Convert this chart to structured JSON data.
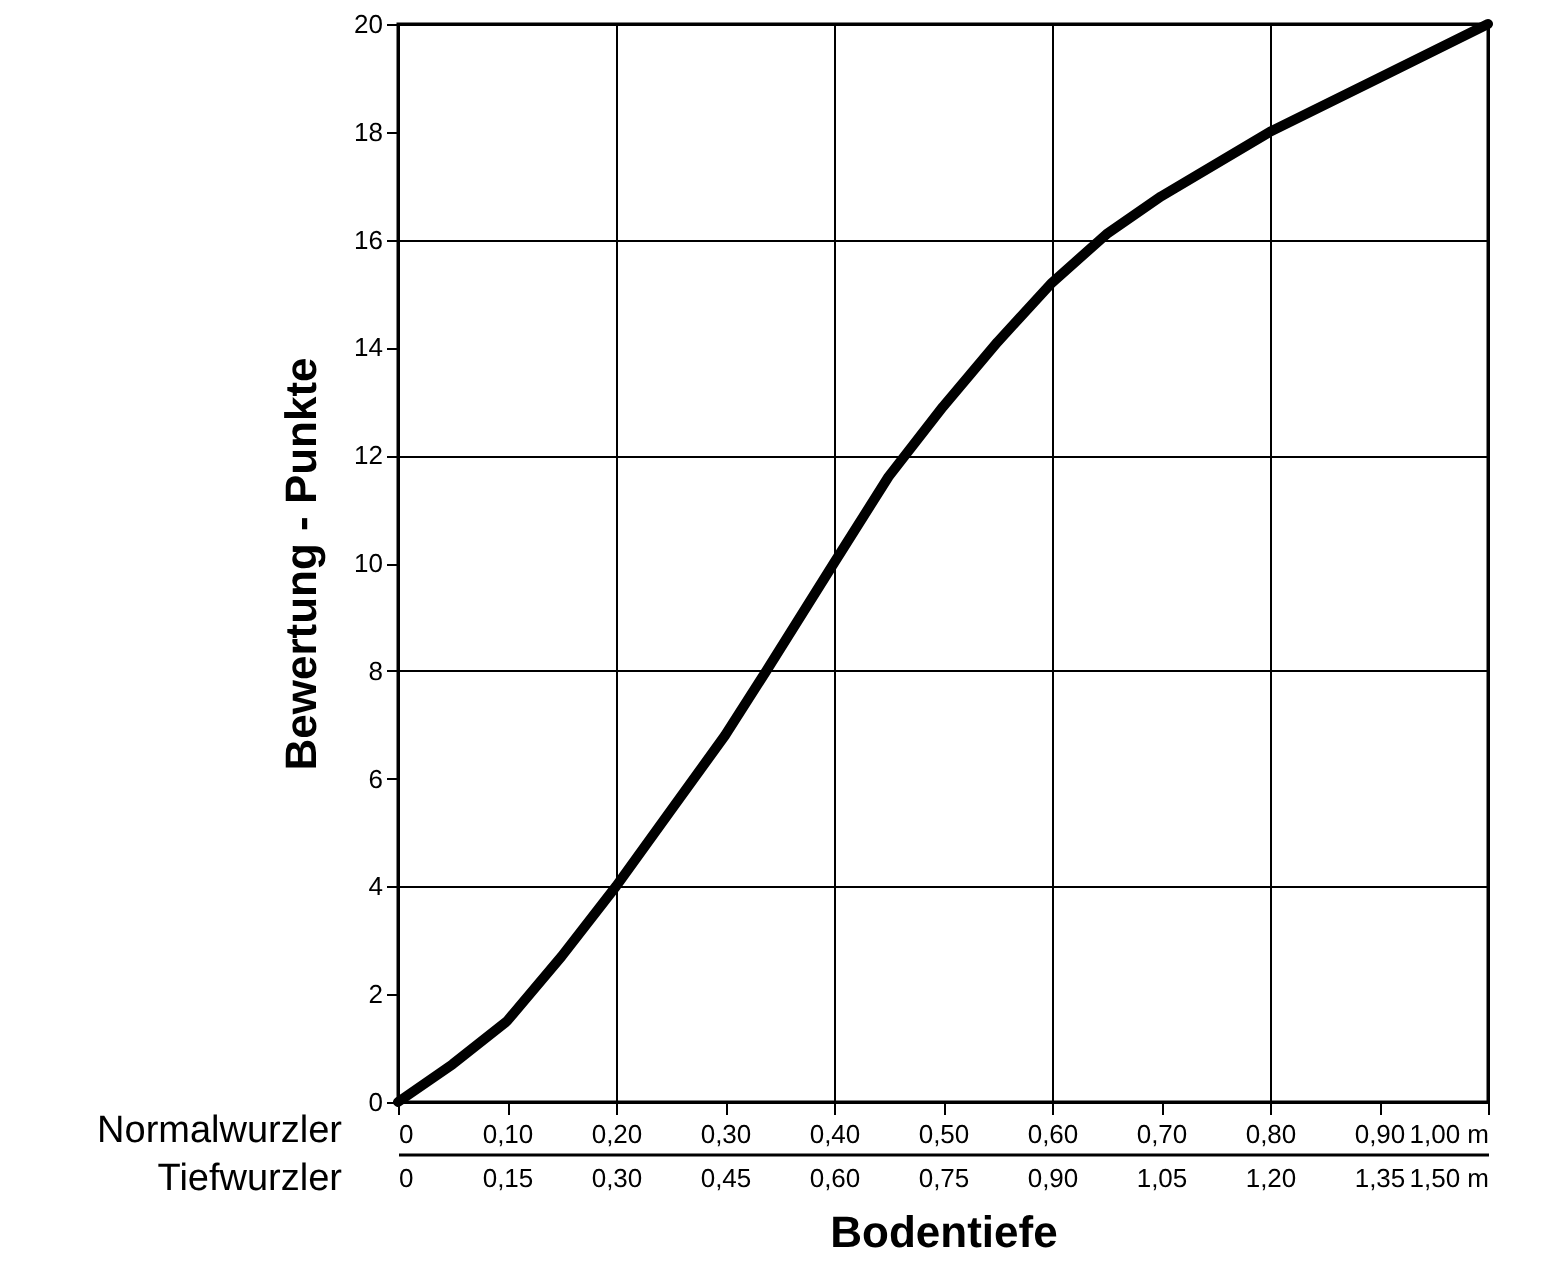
{
  "chart_data": {
    "type": "line",
    "xlabel": "Bodentiefe",
    "ylabel": "Bewertung - Punkte",
    "annotations": [
      "Normalwurzler",
      "Tiefwurzler"
    ],
    "x": [
      0,
      0.05,
      0.1,
      0.15,
      0.2,
      0.25,
      0.3,
      0.338,
      0.4,
      0.45,
      0.5,
      0.55,
      0.6,
      0.65,
      0.7,
      0.8,
      0.9,
      1.0
    ],
    "series": [
      {
        "color": "#000000",
        "values": [
          0,
          0.7,
          1.5,
          2.7,
          4.0,
          5.4,
          6.8,
          8.0,
          10.0,
          11.6,
          12.9,
          14.1,
          15.2,
          16.1,
          16.8,
          18.0,
          19.0,
          20.0
        ]
      }
    ],
    "xlim": [
      0,
      1.0
    ],
    "xticks": [
      {
        "value": 0,
        "label": "0"
      },
      {
        "value": 0.1,
        "label": "0,10"
      },
      {
        "value": 0.2,
        "label": "0,20"
      },
      {
        "value": 0.3,
        "label": "0,30"
      },
      {
        "value": 0.4,
        "label": "0,40"
      },
      {
        "value": 0.5,
        "label": "0,50"
      },
      {
        "value": 0.6,
        "label": "0,60"
      },
      {
        "value": 0.7,
        "label": "0,70"
      },
      {
        "value": 0.8,
        "label": "0,80"
      },
      {
        "value": 0.9,
        "label": "0,90"
      },
      {
        "value": 1.0,
        "label": "1,00 m"
      }
    ],
    "x2lim": [
      0,
      1.5
    ],
    "x2ticks": [
      {
        "value": 0,
        "label": "0"
      },
      {
        "value": 0.15,
        "label": "0,15"
      },
      {
        "value": 0.3,
        "label": "0,30"
      },
      {
        "value": 0.45,
        "label": "0,45"
      },
      {
        "value": 0.6,
        "label": "0,60"
      },
      {
        "value": 0.75,
        "label": "0,75"
      },
      {
        "value": 0.9,
        "label": "0,90"
      },
      {
        "value": 1.05,
        "label": "1,05"
      },
      {
        "value": 1.2,
        "label": "1,20"
      },
      {
        "value": 1.35,
        "label": "1,35"
      },
      {
        "value": 1.5,
        "label": "1,50 m"
      }
    ],
    "ylim": [
      0,
      20
    ],
    "yticks": [
      0,
      2,
      4,
      6,
      8,
      10,
      12,
      14,
      16,
      18,
      20
    ],
    "grid": true,
    "line_style": "solid"
  }
}
